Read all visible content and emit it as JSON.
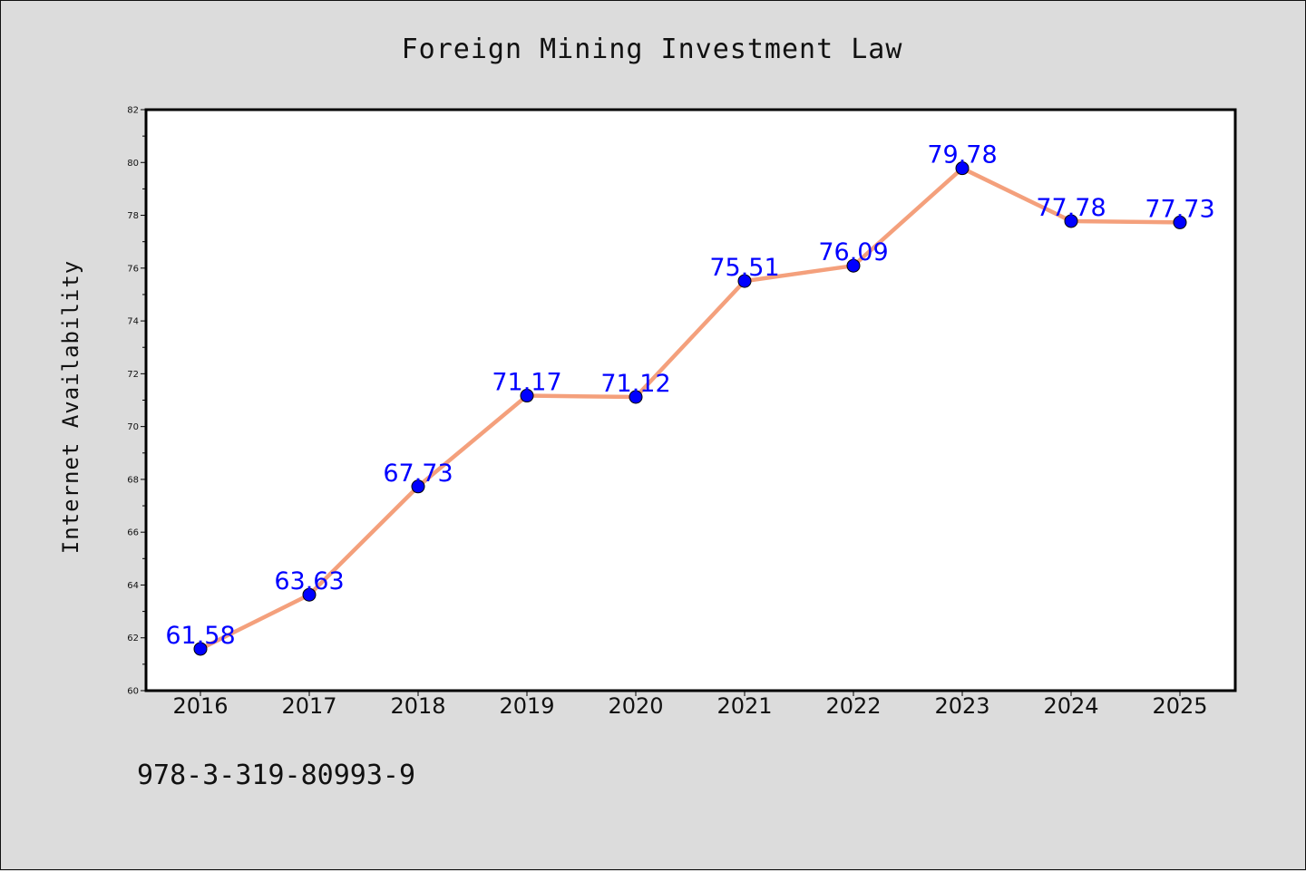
{
  "chart_data": {
    "type": "line",
    "title": "Foreign Mining Investment Law",
    "xlabel": "",
    "ylabel": "Internet Availability",
    "categories": [
      "2016",
      "2017",
      "2018",
      "2019",
      "2020",
      "2021",
      "2022",
      "2023",
      "2024",
      "2025"
    ],
    "series": [
      {
        "values": [
          61.58,
          63.63,
          67.73,
          71.17,
          71.12,
          75.51,
          76.09,
          79.78,
          77.78,
          77.73
        ],
        "line_color": "#f4a07c",
        "marker_color": "#0000ff"
      }
    ],
    "data_labels": [
      "61.58",
      "63.63",
      "67.73",
      "71.17",
      "71.12",
      "75.51",
      "76.09",
      "79.78",
      "77.78",
      "77.73"
    ],
    "ylim": [
      60,
      82
    ],
    "yticks": [
      "60",
      "62",
      "64",
      "66",
      "68",
      "70",
      "72",
      "74",
      "76",
      "78",
      "80",
      "82"
    ],
    "grid": false,
    "legend": "none"
  },
  "footer": {
    "text": "978-3-319-80993-9"
  }
}
